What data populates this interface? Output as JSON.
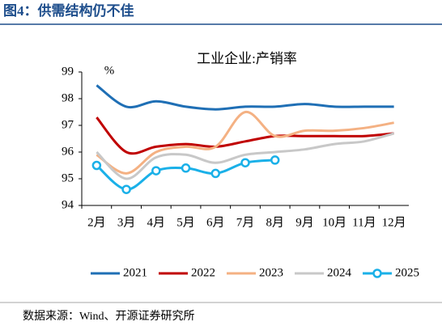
{
  "figure_title": "图4：供需结构仍不佳",
  "source": "数据来源：Wind、开源证券研究所",
  "chart_data": {
    "type": "line",
    "title": "工业企业:产销率",
    "y_unit": "%",
    "categories": [
      "2月",
      "3月",
      "4月",
      "5月",
      "6月",
      "7月",
      "8月",
      "9月",
      "10月",
      "11月",
      "12月"
    ],
    "series": [
      {
        "name": "2021",
        "color": "#1f6fb5",
        "values": [
          98.5,
          97.7,
          97.9,
          97.7,
          97.6,
          97.7,
          97.7,
          97.8,
          97.7,
          97.7,
          97.7
        ]
      },
      {
        "name": "2022",
        "color": "#c00000",
        "values": [
          97.3,
          96.0,
          96.2,
          96.3,
          96.2,
          96.4,
          96.6,
          96.6,
          96.6,
          96.6,
          96.7
        ]
      },
      {
        "name": "2023",
        "color": "#f4b183",
        "values": [
          95.9,
          95.2,
          96.0,
          96.2,
          96.2,
          97.5,
          96.6,
          96.8,
          96.8,
          96.9,
          97.1
        ]
      },
      {
        "name": "2024",
        "color": "#c8c8c8",
        "values": [
          96.0,
          95.0,
          95.8,
          95.9,
          95.6,
          95.9,
          96.0,
          96.1,
          96.3,
          96.4,
          96.7
        ]
      },
      {
        "name": "2025",
        "color": "#1ab0e8",
        "markers": true,
        "values": [
          95.5,
          94.6,
          95.3,
          95.4,
          95.2,
          95.6,
          95.7,
          null,
          null,
          null,
          null
        ]
      }
    ],
    "ylim": [
      94,
      99
    ],
    "yticks": [
      94,
      95,
      96,
      97,
      98,
      99
    ],
    "grid": false
  }
}
